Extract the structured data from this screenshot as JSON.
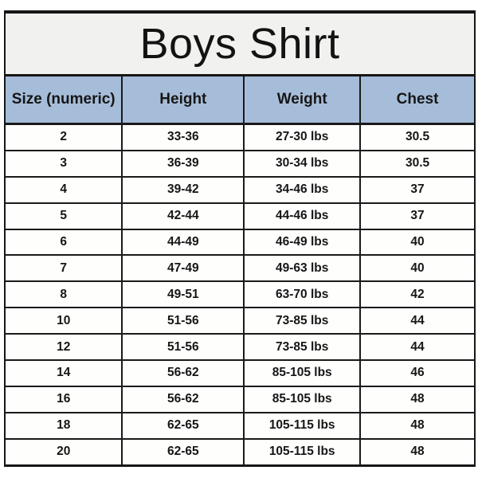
{
  "title": "Boys Shirt",
  "colors": {
    "header_bg": "#a6bdd9",
    "title_bg": "#f1f1ef",
    "border": "#1a1a1a",
    "row_bg": "#fefefd",
    "text": "#161616"
  },
  "chart_data": {
    "type": "table",
    "title": "Boys Shirt",
    "columns": [
      "Size (numeric)",
      "Height",
      "Weight",
      "Chest"
    ],
    "rows": [
      [
        "2",
        "33-36",
        "27-30 lbs",
        "30.5"
      ],
      [
        "3",
        "36-39",
        "30-34 lbs",
        "30.5"
      ],
      [
        "4",
        "39-42",
        "34-46 lbs",
        "37"
      ],
      [
        "5",
        "42-44",
        "44-46 lbs",
        "37"
      ],
      [
        "6",
        "44-49",
        "46-49 lbs",
        "40"
      ],
      [
        "7",
        "47-49",
        "49-63 lbs",
        "40"
      ],
      [
        "8",
        "49-51",
        "63-70 lbs",
        "42"
      ],
      [
        "10",
        "51-56",
        "73-85 lbs",
        "44"
      ],
      [
        "12",
        "51-56",
        "73-85 lbs",
        "44"
      ],
      [
        "14",
        "56-62",
        "85-105 lbs",
        "46"
      ],
      [
        "16",
        "56-62",
        "85-105 lbs",
        "48"
      ],
      [
        "18",
        "62-65",
        "105-115 lbs",
        "48"
      ],
      [
        "20",
        "62-65",
        "105-115 lbs",
        "48"
      ]
    ]
  }
}
